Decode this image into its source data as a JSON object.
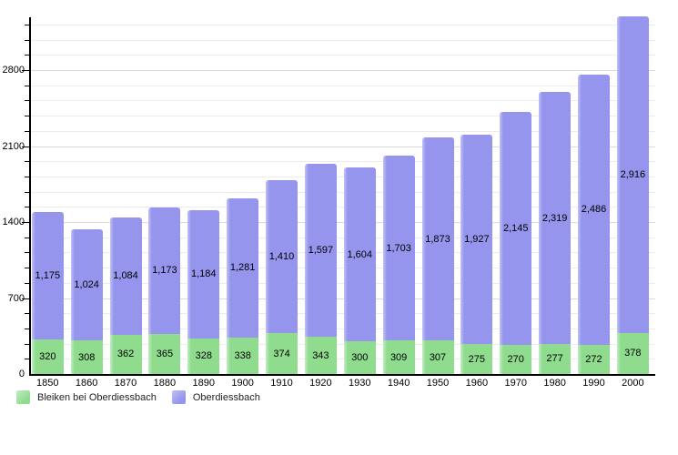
{
  "chart_data": {
    "type": "bar",
    "stacked": true,
    "orientation": "vertical",
    "grid": true,
    "categories": [
      "1850",
      "1860",
      "1870",
      "1880",
      "1890",
      "1900",
      "1910",
      "1920",
      "1930",
      "1940",
      "1950",
      "1960",
      "1970",
      "1980",
      "1990",
      "2000"
    ],
    "series": [
      {
        "name": "Bleiken bei Oberdiessbach",
        "color": "#8fdc8f",
        "color_edge_highlight": "#c2ecc2",
        "values": [
          320,
          308,
          362,
          365,
          328,
          338,
          374,
          343,
          300,
          309,
          307,
          275,
          270,
          277,
          272,
          378
        ]
      },
      {
        "name": "Oberdiessbach",
        "color": "#9595ee",
        "color_edge_highlight": "#c0c0f7",
        "values": [
          1175,
          1024,
          1084,
          1173,
          1184,
          1281,
          1410,
          1597,
          1604,
          1703,
          1873,
          1927,
          2145,
          2319,
          2486,
          2916
        ]
      }
    ],
    "data_labels": {
      "series_0": [
        "320",
        "308",
        "362",
        "365",
        "328",
        "338",
        "374",
        "343",
        "300",
        "309",
        "307",
        "275",
        "270",
        "277",
        "272",
        "378"
      ],
      "series_1": [
        "1,175",
        "1,024",
        "1,084",
        "1,173",
        "1,184",
        "1,281",
        "1,410",
        "1,597",
        "1,604",
        "1,703",
        "1,873",
        "1,927",
        "2,145",
        "2,319",
        "2,486",
        "2,916"
      ]
    },
    "xlabel": "",
    "ylabel": "",
    "title": "",
    "y_axis": {
      "tick_labels": [
        "0",
        "700",
        "1400",
        "2100",
        "2800"
      ],
      "major_interval": 700,
      "minor_interval": 140,
      "min": 0,
      "max_gridline_value": 3220,
      "major_gridline_color": "#dadada",
      "minor_gridline_color": "#ececec"
    },
    "legend_position": "bottom-left"
  },
  "legend": {
    "items": [
      {
        "label": "Bleiken bei Oberdiessbach",
        "color": "#8fdc8f"
      },
      {
        "label": "Oberdiessbach",
        "color": "#9595ee"
      }
    ]
  }
}
